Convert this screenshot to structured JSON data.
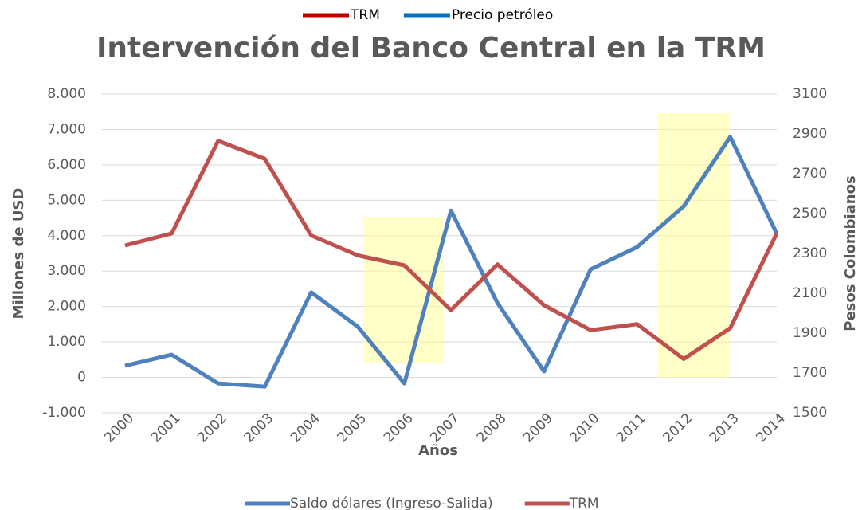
{
  "chart_data": {
    "type": "line",
    "title": "Intervención del Banco Central en la TRM",
    "top_legend": [
      {
        "name": "TRM",
        "color": "#c00000"
      },
      {
        "name": "Precio petróleo",
        "color": "#0070c0"
      }
    ],
    "x_label": "Años",
    "y_label": "Millones de USD",
    "y2_label": "Pesos Colombianos",
    "categories": [
      "2000",
      "2001",
      "2002",
      "2003",
      "2004",
      "2005",
      "2006",
      "2007",
      "2008",
      "2009",
      "2010",
      "2011",
      "2012",
      "2013",
      "2014"
    ],
    "series": [
      {
        "name": "Saldo dólares (Ingreso-Salida)",
        "color": "#4f81bd",
        "axis": "y",
        "values": [
          330,
          640,
          -170,
          -260,
          2400,
          1430,
          -170,
          4710,
          2100,
          170,
          3050,
          3680,
          4830,
          6790,
          4060
        ]
      },
      {
        "name": "TRM",
        "color": "#c0504d",
        "axis": "y2",
        "values": [
          2340,
          2400,
          2865,
          2775,
          2390,
          2290,
          2240,
          2015,
          2245,
          2040,
          1915,
          1945,
          1770,
          1925,
          2400
        ]
      }
    ],
    "ylim": [
      -1000,
      8000
    ],
    "yticks": [
      {
        "value": -1000,
        "label": "-1.000"
      },
      0,
      {
        "value": 1000,
        "label": "1.000"
      },
      {
        "value": 2000,
        "label": "2.000"
      },
      {
        "value": 3000,
        "label": "3.000"
      },
      {
        "value": 4000,
        "label": "4.000"
      },
      {
        "value": 5000,
        "label": "5.000"
      },
      {
        "value": 6000,
        "label": "6.000"
      },
      {
        "value": 7000,
        "label": "7.000"
      },
      {
        "value": 8000,
        "label": "8.000"
      }
    ],
    "y2lim": [
      1500,
      3100
    ],
    "y2ticks": [
      1500,
      1700,
      1900,
      2100,
      2300,
      2500,
      2700,
      2900,
      3100
    ],
    "grid": true,
    "legend": "bottom"
  }
}
